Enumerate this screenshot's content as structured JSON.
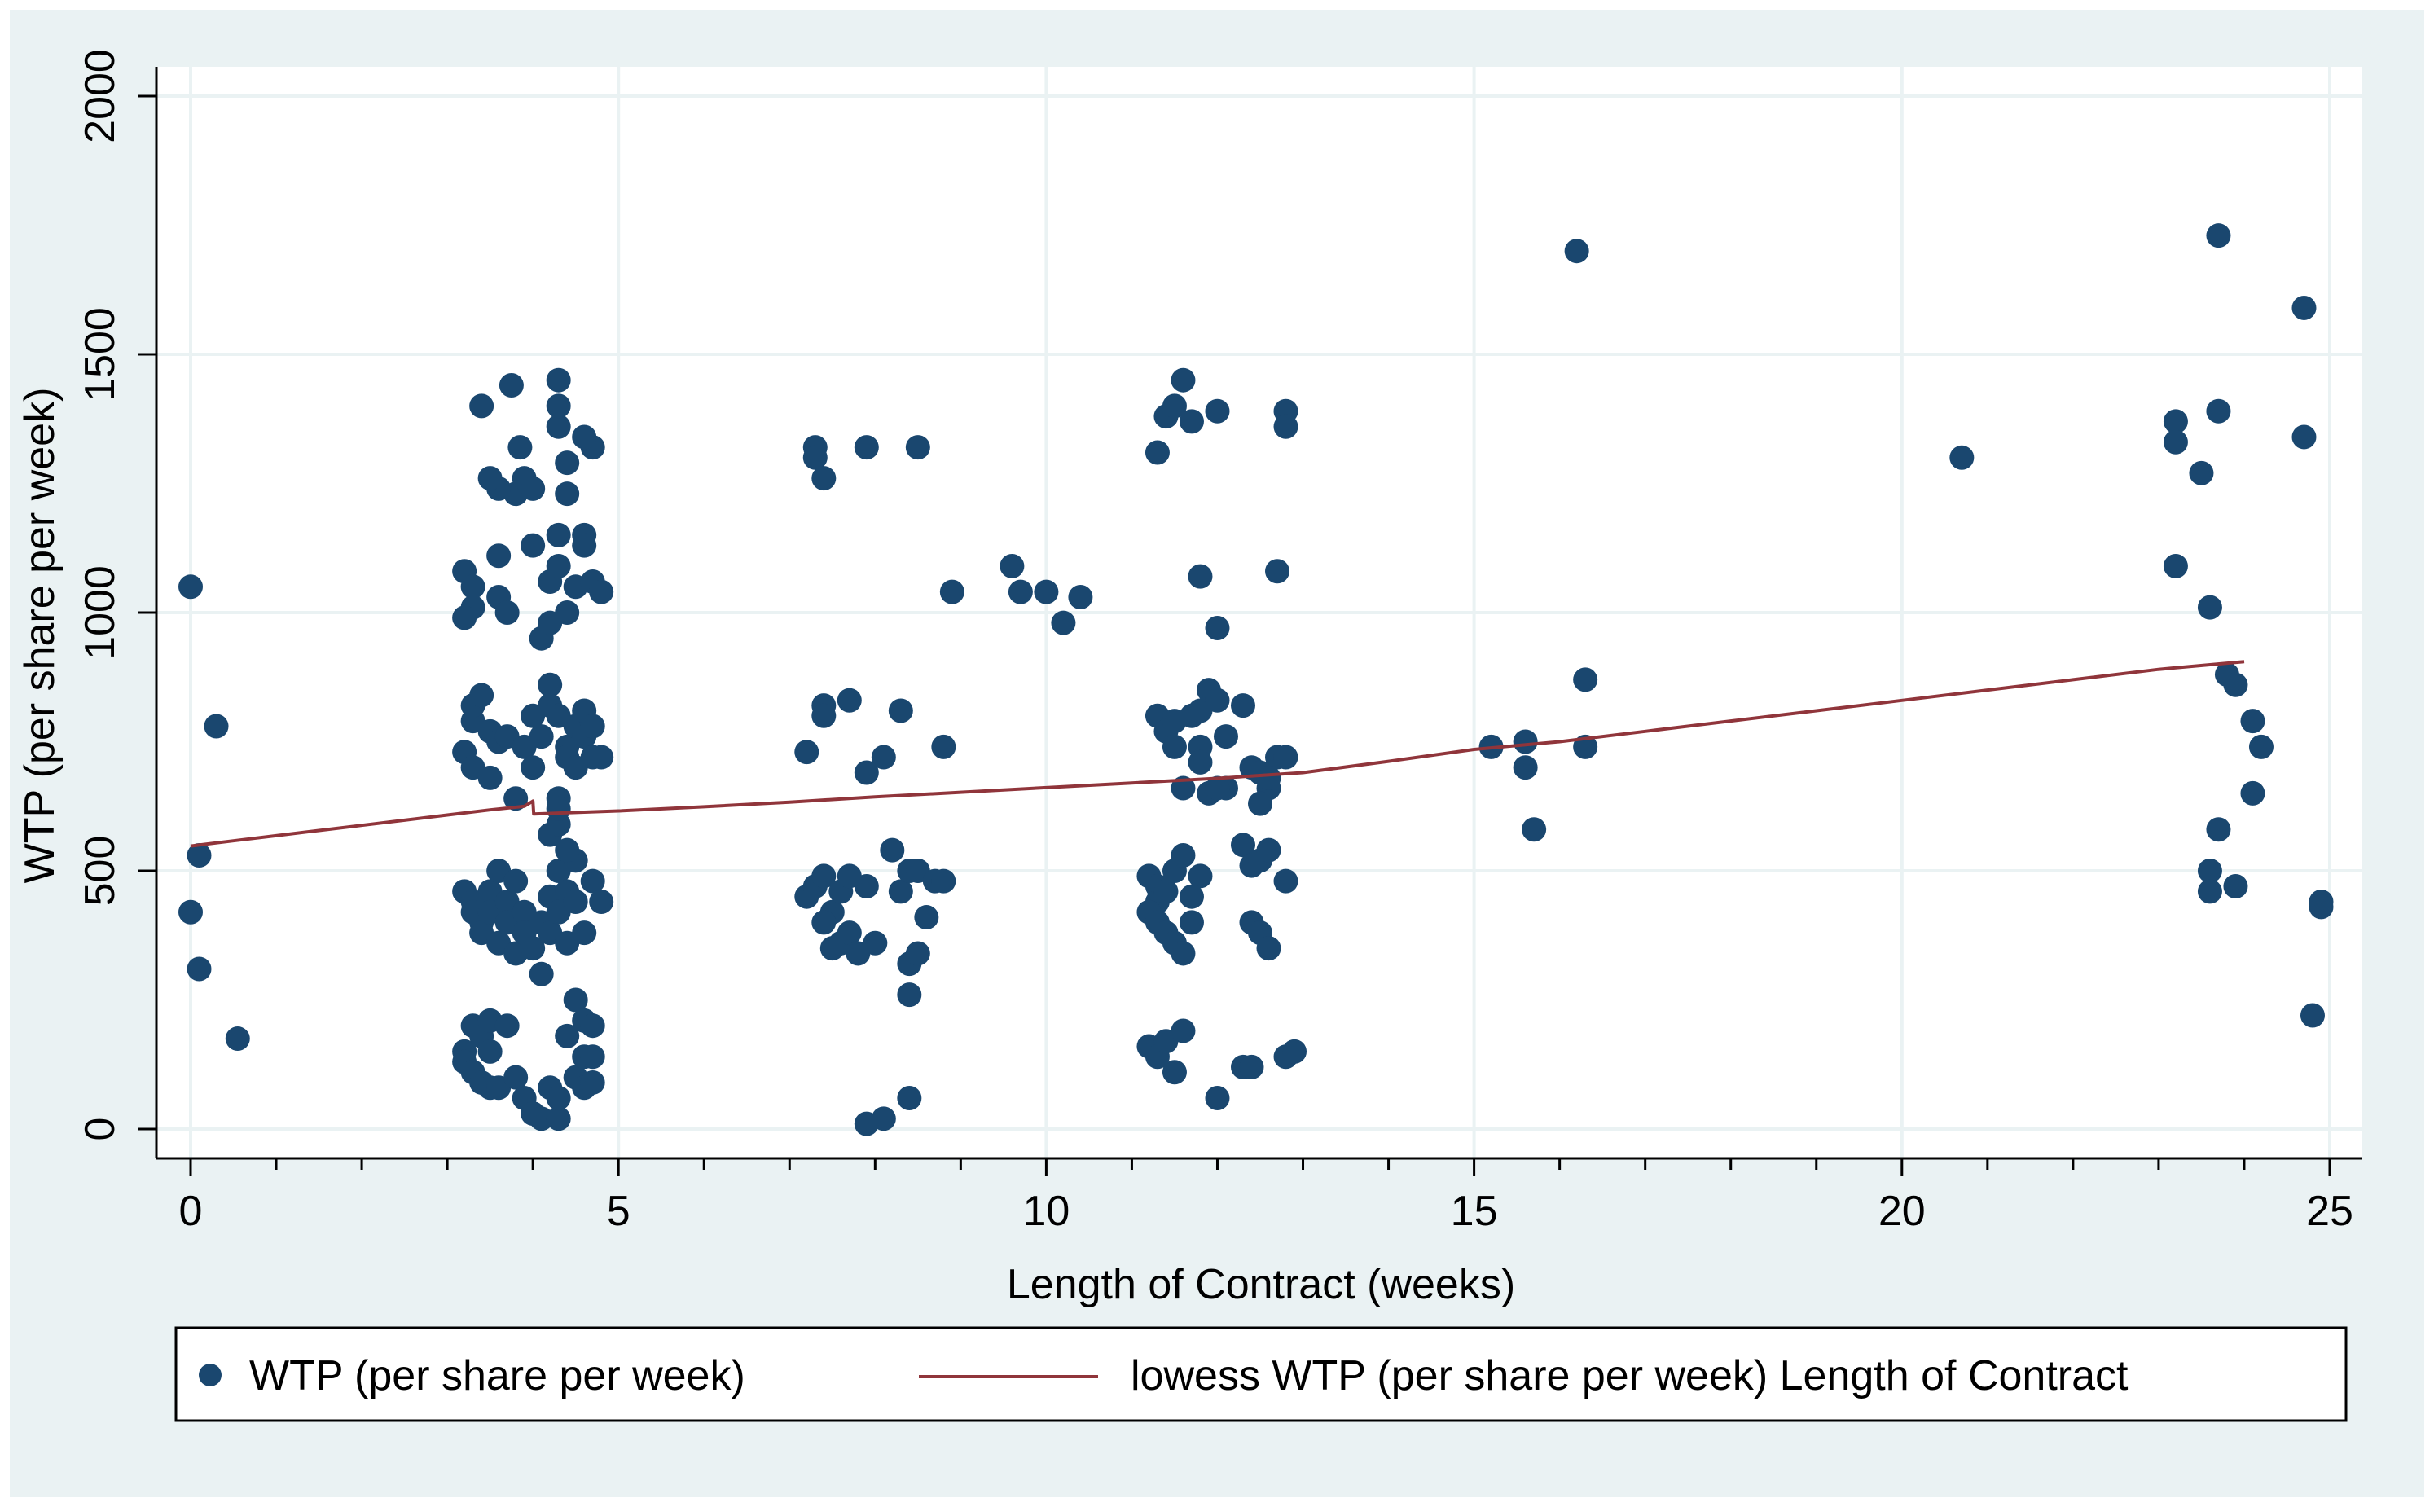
{
  "chart_data": {
    "type": "scatter",
    "title": "",
    "xlabel": "Length of Contract (weeks)",
    "ylabel": "WTP (per share per week)",
    "xlim": [
      0,
      25
    ],
    "ylim": [
      0,
      2000
    ],
    "x_ticks": [
      0,
      5,
      10,
      15,
      20,
      25
    ],
    "y_ticks": [
      0,
      500,
      1000,
      1500,
      2000
    ],
    "x_minor_ticks": [
      1,
      2,
      3,
      4,
      6,
      7,
      8,
      9,
      11,
      12,
      13,
      14,
      16,
      17,
      18,
      19,
      21,
      22,
      23,
      24
    ],
    "x_tick_labels": [
      "0",
      "5",
      "10",
      "15",
      "20",
      "25"
    ],
    "y_tick_labels": [
      "0",
      "500",
      "1000",
      "1500",
      "2000"
    ],
    "grid": true,
    "legend_position": "bottom",
    "colors": {
      "background": "#ffffff",
      "outer_region": "#eaf2f3",
      "grid": "#eaf2f3",
      "scatter": "#1a476f",
      "lowess": "#90353b",
      "axis": "#000000"
    },
    "series": [
      {
        "name": "WTP (per share per week)",
        "kind": "scatter",
        "points": [
          [
            0.0,
            1050
          ],
          [
            0.3,
            780
          ],
          [
            0.1,
            530
          ],
          [
            0.0,
            420
          ],
          [
            0.1,
            310
          ],
          [
            0.55,
            175
          ],
          [
            3.2,
            730
          ],
          [
            3.3,
            790
          ],
          [
            3.3,
            820
          ],
          [
            3.4,
            840
          ],
          [
            3.5,
            770
          ],
          [
            3.6,
            750
          ],
          [
            3.7,
            760
          ],
          [
            3.3,
            700
          ],
          [
            3.5,
            680
          ],
          [
            3.9,
            740
          ],
          [
            4.0,
            700
          ],
          [
            3.8,
            640
          ],
          [
            3.4,
            1400
          ],
          [
            3.6,
            1110
          ],
          [
            3.2,
            1080
          ],
          [
            3.3,
            1050
          ],
          [
            3.3,
            1010
          ],
          [
            3.2,
            990
          ],
          [
            3.6,
            1030
          ],
          [
            3.7,
            1000
          ],
          [
            3.8,
            1230
          ],
          [
            3.9,
            1260
          ],
          [
            3.85,
            1320
          ],
          [
            3.75,
            1440
          ],
          [
            3.6,
            1240
          ],
          [
            3.5,
            1260
          ],
          [
            3.2,
            460
          ],
          [
            3.3,
            440
          ],
          [
            3.3,
            420
          ],
          [
            3.4,
            400
          ],
          [
            3.4,
            380
          ],
          [
            3.5,
            460
          ],
          [
            3.5,
            420
          ],
          [
            3.6,
            500
          ],
          [
            3.6,
            360
          ],
          [
            3.7,
            440
          ],
          [
            3.7,
            400
          ],
          [
            3.8,
            480
          ],
          [
            3.8,
            340
          ],
          [
            3.9,
            420
          ],
          [
            3.9,
            380
          ],
          [
            3.3,
            200
          ],
          [
            3.4,
            180
          ],
          [
            3.5,
            150
          ],
          [
            3.2,
            150
          ],
          [
            3.2,
            130
          ],
          [
            3.3,
            110
          ],
          [
            3.4,
            90
          ],
          [
            3.5,
            80
          ],
          [
            3.6,
            80
          ],
          [
            3.5,
            210
          ],
          [
            3.7,
            200
          ],
          [
            3.8,
            100
          ],
          [
            3.9,
            60
          ],
          [
            4.0,
            30
          ],
          [
            4.1,
            20
          ],
          [
            4.3,
            20
          ],
          [
            4.2,
            80
          ],
          [
            4.3,
            60
          ],
          [
            4.5,
            100
          ],
          [
            4.6,
            80
          ],
          [
            4.7,
            90
          ],
          [
            4.4,
            180
          ],
          [
            4.5,
            250
          ],
          [
            4.6,
            210
          ],
          [
            4.7,
            200
          ],
          [
            4.6,
            140
          ],
          [
            4.7,
            140
          ],
          [
            4.0,
            350
          ],
          [
            4.1,
            400
          ],
          [
            4.1,
            300
          ],
          [
            4.2,
            380
          ],
          [
            4.2,
            450
          ],
          [
            4.3,
            500
          ],
          [
            4.3,
            420
          ],
          [
            4.4,
            460
          ],
          [
            4.4,
            360
          ],
          [
            4.5,
            520
          ],
          [
            4.5,
            440
          ],
          [
            4.6,
            380
          ],
          [
            4.7,
            480
          ],
          [
            4.8,
            440
          ],
          [
            4.2,
            570
          ],
          [
            4.3,
            590
          ],
          [
            4.4,
            540
          ],
          [
            4.0,
            800
          ],
          [
            4.1,
            760
          ],
          [
            4.2,
            860
          ],
          [
            4.2,
            820
          ],
          [
            4.3,
            800
          ],
          [
            4.3,
            640
          ],
          [
            4.4,
            740
          ],
          [
            4.4,
            720
          ],
          [
            4.5,
            780
          ],
          [
            4.6,
            760
          ],
          [
            4.6,
            810
          ],
          [
            4.7,
            720
          ],
          [
            4.8,
            720
          ],
          [
            4.7,
            780
          ],
          [
            4.5,
            700
          ],
          [
            4.3,
            620
          ],
          [
            4.0,
            1130
          ],
          [
            4.1,
            950
          ],
          [
            4.2,
            980
          ],
          [
            4.2,
            1060
          ],
          [
            4.3,
            1150
          ],
          [
            4.3,
            1090
          ],
          [
            4.4,
            1000
          ],
          [
            4.4,
            1230
          ],
          [
            4.4,
            1290
          ],
          [
            4.5,
            1050
          ],
          [
            4.6,
            1150
          ],
          [
            4.6,
            1130
          ],
          [
            4.7,
            1060
          ],
          [
            4.7,
            1320
          ],
          [
            4.6,
            1340
          ],
          [
            4.3,
            1360
          ],
          [
            4.3,
            1400
          ],
          [
            4.3,
            1450
          ],
          [
            4.8,
            1040
          ],
          [
            4.0,
            1240
          ],
          [
            7.3,
            1320
          ],
          [
            7.3,
            1300
          ],
          [
            7.4,
            1260
          ],
          [
            7.9,
            1320
          ],
          [
            8.5,
            1320
          ],
          [
            7.4,
            820
          ],
          [
            7.4,
            800
          ],
          [
            7.2,
            730
          ],
          [
            7.7,
            830
          ],
          [
            7.9,
            690
          ],
          [
            8.1,
            720
          ],
          [
            8.3,
            810
          ],
          [
            8.8,
            740
          ],
          [
            7.2,
            450
          ],
          [
            7.3,
            470
          ],
          [
            7.4,
            490
          ],
          [
            7.5,
            420
          ],
          [
            7.6,
            460
          ],
          [
            7.7,
            490
          ],
          [
            7.4,
            400
          ],
          [
            7.5,
            350
          ],
          [
            7.6,
            360
          ],
          [
            7.7,
            380
          ],
          [
            7.8,
            340
          ],
          [
            7.9,
            470
          ],
          [
            8.0,
            360
          ],
          [
            8.2,
            540
          ],
          [
            8.3,
            460
          ],
          [
            8.4,
            500
          ],
          [
            8.5,
            500
          ],
          [
            8.6,
            410
          ],
          [
            8.7,
            480
          ],
          [
            8.8,
            480
          ],
          [
            8.4,
            320
          ],
          [
            8.5,
            340
          ],
          [
            8.4,
            260
          ],
          [
            7.9,
            10
          ],
          [
            8.1,
            20
          ],
          [
            8.4,
            60
          ],
          [
            8.9,
            1040
          ],
          [
            9.6,
            1090
          ],
          [
            9.7,
            1040
          ],
          [
            10.0,
            1040
          ],
          [
            10.2,
            980
          ],
          [
            10.4,
            1030
          ],
          [
            11.3,
            1310
          ],
          [
            11.4,
            1380
          ],
          [
            11.5,
            1400
          ],
          [
            11.6,
            1450
          ],
          [
            11.7,
            1370
          ],
          [
            12.0,
            1390
          ],
          [
            12.8,
            1390
          ],
          [
            12.8,
            1360
          ],
          [
            11.8,
            1070
          ],
          [
            12.0,
            970
          ],
          [
            12.7,
            1080
          ],
          [
            11.3,
            800
          ],
          [
            11.4,
            770
          ],
          [
            11.5,
            790
          ],
          [
            11.5,
            740
          ],
          [
            11.6,
            660
          ],
          [
            11.7,
            800
          ],
          [
            11.8,
            810
          ],
          [
            11.8,
            740
          ],
          [
            11.9,
            850
          ],
          [
            12.0,
            830
          ],
          [
            12.1,
            660
          ],
          [
            12.1,
            760
          ],
          [
            12.3,
            820
          ],
          [
            12.4,
            700
          ],
          [
            12.5,
            690
          ],
          [
            12.6,
            660
          ],
          [
            12.7,
            720
          ],
          [
            12.8,
            720
          ],
          [
            11.8,
            710
          ],
          [
            11.9,
            650
          ],
          [
            12.0,
            660
          ],
          [
            12.5,
            630
          ],
          [
            12.6,
            680
          ],
          [
            11.2,
            490
          ],
          [
            11.3,
            470
          ],
          [
            11.3,
            440
          ],
          [
            11.4,
            460
          ],
          [
            11.5,
            500
          ],
          [
            11.6,
            530
          ],
          [
            11.7,
            400
          ],
          [
            11.8,
            490
          ],
          [
            11.2,
            420
          ],
          [
            11.3,
            400
          ],
          [
            11.4,
            380
          ],
          [
            11.5,
            360
          ],
          [
            11.6,
            340
          ],
          [
            11.7,
            450
          ],
          [
            12.3,
            550
          ],
          [
            12.4,
            510
          ],
          [
            12.5,
            520
          ],
          [
            12.6,
            540
          ],
          [
            12.8,
            480
          ],
          [
            12.4,
            400
          ],
          [
            12.5,
            380
          ],
          [
            12.6,
            350
          ],
          [
            11.2,
            160
          ],
          [
            11.3,
            140
          ],
          [
            11.4,
            170
          ],
          [
            11.5,
            110
          ],
          [
            11.6,
            190
          ],
          [
            12.0,
            60
          ],
          [
            12.3,
            120
          ],
          [
            12.4,
            120
          ],
          [
            12.8,
            140
          ],
          [
            12.9,
            150
          ],
          [
            15.2,
            740
          ],
          [
            15.6,
            750
          ],
          [
            15.6,
            700
          ],
          [
            15.7,
            580
          ],
          [
            16.2,
            1700
          ],
          [
            16.3,
            870
          ],
          [
            16.3,
            740
          ],
          [
            20.7,
            1300
          ],
          [
            23.2,
            1370
          ],
          [
            23.2,
            1330
          ],
          [
            23.2,
            1090
          ],
          [
            23.5,
            1270
          ],
          [
            23.7,
            1390
          ],
          [
            23.7,
            1730
          ],
          [
            23.6,
            1010
          ],
          [
            23.8,
            880
          ],
          [
            23.9,
            860
          ],
          [
            24.1,
            790
          ],
          [
            24.2,
            740
          ],
          [
            24.1,
            650
          ],
          [
            23.7,
            580
          ],
          [
            23.6,
            500
          ],
          [
            23.6,
            460
          ],
          [
            23.9,
            470
          ],
          [
            24.7,
            1590
          ],
          [
            24.7,
            1340
          ],
          [
            24.9,
            440
          ],
          [
            24.9,
            430
          ],
          [
            24.8,
            220
          ]
        ]
      },
      {
        "name": "lowess WTP (per share per week) Length of Contract",
        "kind": "line",
        "x": [
          0.0,
          0.5,
          1.0,
          1.5,
          2.0,
          2.5,
          3.0,
          3.5,
          3.9,
          4.0,
          4.01,
          4.5,
          5.0,
          6.0,
          7.0,
          8.0,
          9.0,
          10.0,
          11.0,
          12.0,
          13.0,
          14.0,
          15.0,
          16.0,
          17.0,
          18.0,
          19.0,
          20.0,
          21.0,
          22.0,
          23.0,
          24.0
        ],
        "y": [
          548,
          558,
          568,
          578,
          588,
          598,
          608,
          618,
          625,
          635,
          610,
          613,
          616,
          624,
          633,
          643,
          652,
          661,
          670,
          679,
          690,
          712,
          735,
          750,
          770,
          790,
          810,
          830,
          850,
          870,
          890,
          905
        ]
      }
    ]
  }
}
